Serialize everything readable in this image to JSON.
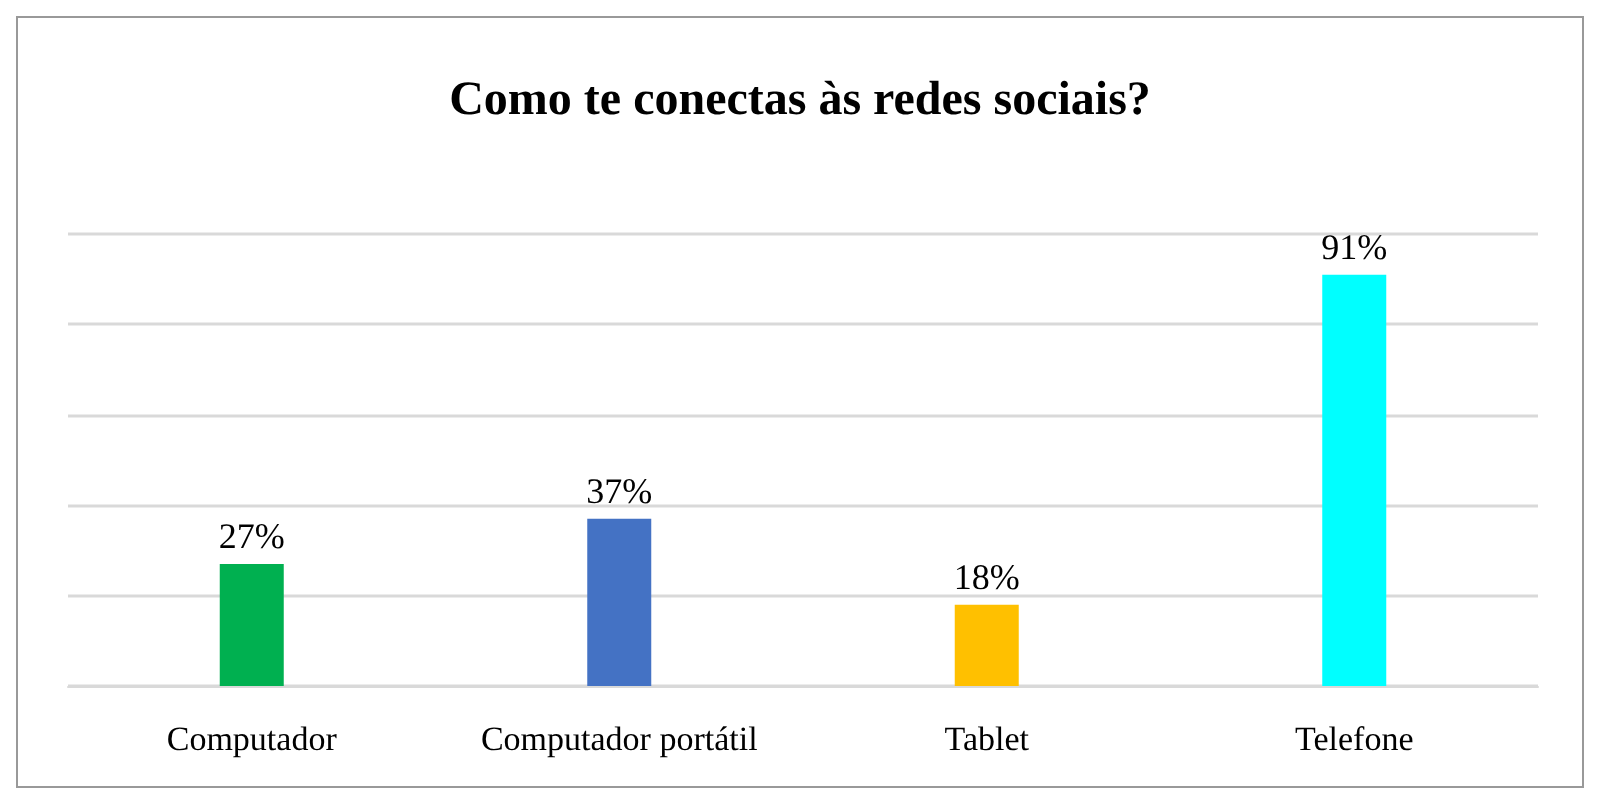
{
  "chart_data": {
    "type": "bar",
    "title": "Como te conectas às redes sociais?",
    "categories": [
      "Computador",
      "Computador portátil",
      "Tablet",
      "Telefone"
    ],
    "values": [
      27,
      37,
      18,
      91
    ],
    "colors": [
      "#00b050",
      "#4472c4",
      "#ffc000",
      "#00ffff"
    ],
    "value_labels": [
      "27%",
      "37%",
      "18%",
      "91%"
    ],
    "ylim": [
      0,
      100
    ],
    "yticks": [
      {
        "value": 0,
        "label": null
      },
      {
        "value": 20,
        "label": null
      },
      {
        "value": 40,
        "label": null
      },
      {
        "value": 60,
        "label": null
      },
      {
        "value": 80,
        "label": null
      },
      {
        "value": 100,
        "label": null
      }
    ],
    "tick_labels": "x",
    "grid": "y"
  }
}
